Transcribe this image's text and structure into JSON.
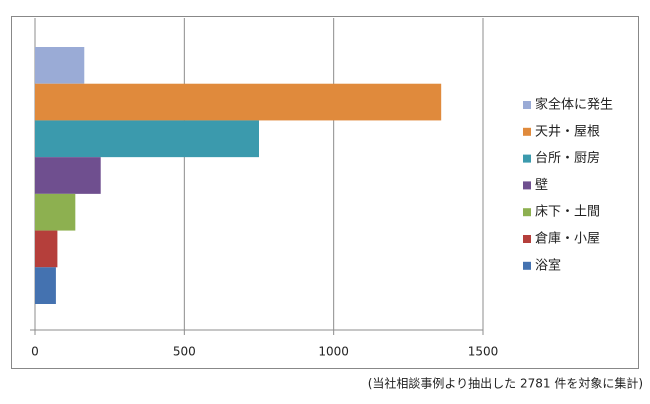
{
  "chart_data": {
    "type": "bar",
    "orientation": "horizontal",
    "series": [
      {
        "name": "家全体に発生",
        "color": "#9aabd6",
        "values": [
          165
        ]
      },
      {
        "name": "天井・屋根",
        "color": "#e08a3c",
        "values": [
          1360
        ]
      },
      {
        "name": "台所・厨房",
        "color": "#3b9aad",
        "values": [
          750
        ]
      },
      {
        "name": "壁",
        "color": "#6f4f8f",
        "values": [
          220
        ]
      },
      {
        "name": "床下・土間",
        "color": "#8db050",
        "values": [
          135
        ]
      },
      {
        "name": "倉庫・小屋",
        "color": "#b53f3b",
        "values": [
          75
        ]
      },
      {
        "name": "浴室",
        "color": "#4472b0",
        "values": [
          70
        ]
      }
    ],
    "xlim": [
      0,
      1500
    ],
    "xticks": [
      0,
      500,
      1000,
      1500
    ],
    "grid": true,
    "legend": "right",
    "caption": "(当社相談事例より抽出した 2781 件を対象に集計)"
  }
}
